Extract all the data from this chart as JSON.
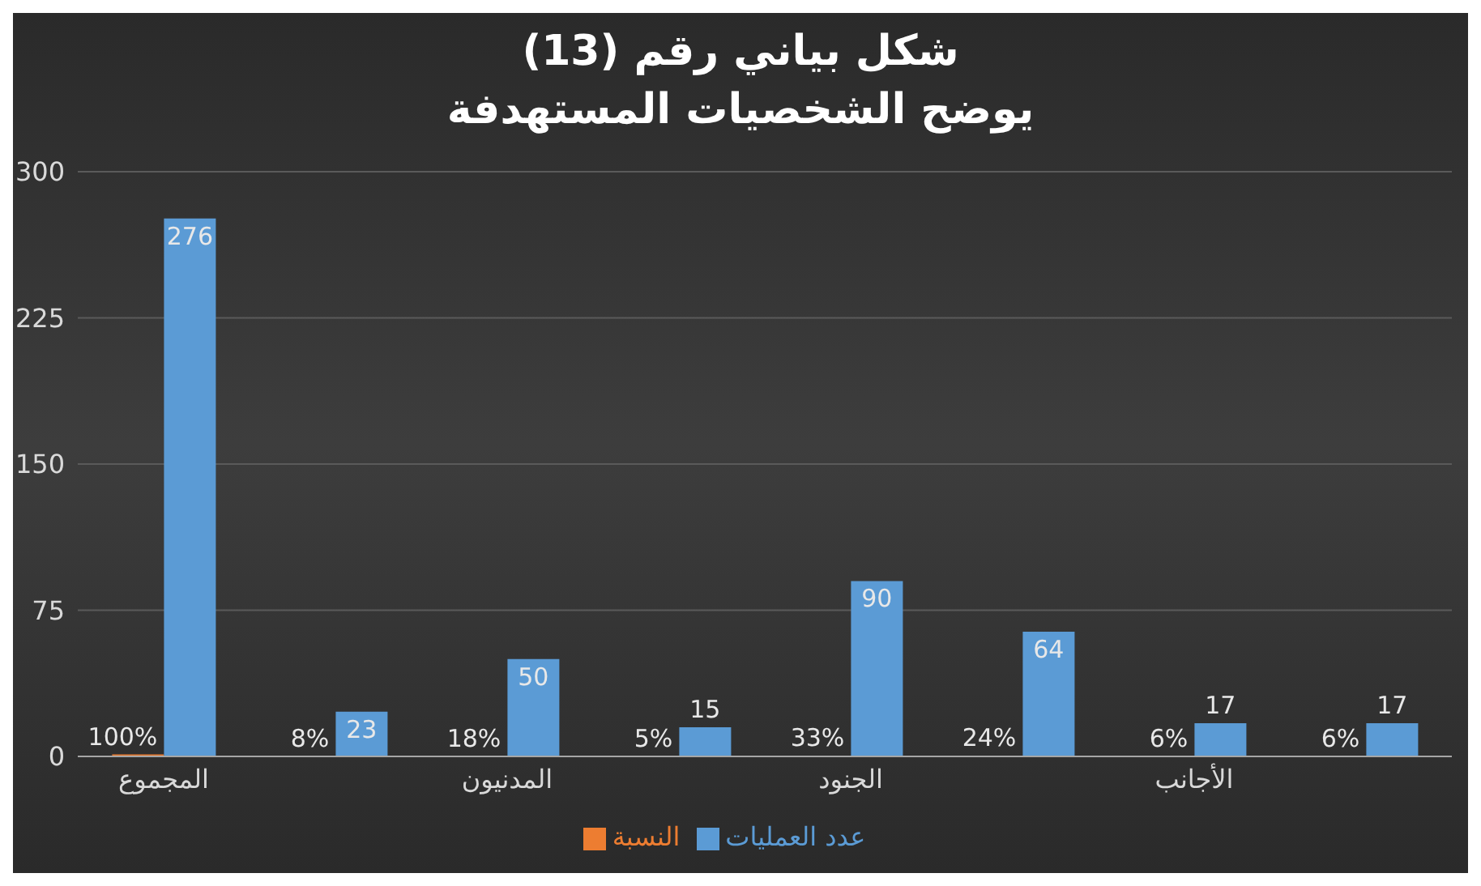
{
  "chart_data": {
    "type": "bar",
    "title": "شكل بياني رقم (13)",
    "subtitle": "يوضح الشخصيات المستهدفة",
    "categories": [
      "المجموع",
      null,
      "المدنيون",
      null,
      "الجنود",
      null,
      "الأجانب",
      null
    ],
    "series": [
      {
        "name": "النسبة",
        "color": "#ed7d31",
        "values": [
          1,
          0.08,
          0.18,
          0.05,
          0.33,
          0.24,
          0.06,
          0.06
        ],
        "value_labels": [
          "100%",
          "8%",
          "18%",
          "5%",
          "33%",
          "24%",
          "6%",
          "6%"
        ]
      },
      {
        "name": "عدد العمليات",
        "color": "#5b9bd5",
        "values": [
          276,
          23,
          50,
          15,
          90,
          64,
          17,
          17
        ],
        "value_labels": [
          "276",
          "23",
          "50",
          "15",
          "90",
          "64",
          "17",
          "17"
        ]
      }
    ],
    "ylim": [
      0,
      300
    ],
    "yticks": [
      0,
      75,
      150,
      225,
      300
    ],
    "grid": "y",
    "legend": "bottom"
  }
}
